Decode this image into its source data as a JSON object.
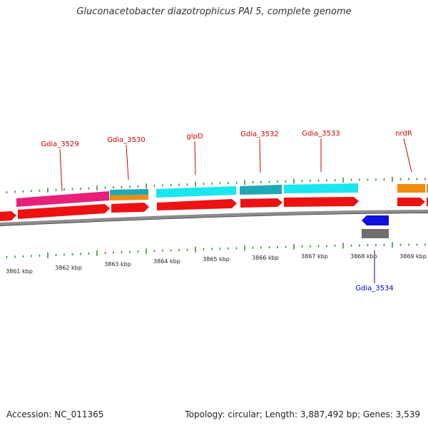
{
  "title": "Gluconacetobacter diazotrophicus PAI 5, complete genome",
  "footer": {
    "accession": "Accession: NC_011365",
    "topology": "Topology: circular; Length: 3,887,492 bp; Genes: 3,539"
  },
  "colors": {
    "background": "#ffffff",
    "label_forward": "#cc0000",
    "label_reverse": "#0000cc",
    "tick": "#2e8b2e",
    "backbone": "#8c8c8c",
    "gene_pink": "#e8207a",
    "gene_cyan": "#19e6ee",
    "gene_teal": "#1fa9b5",
    "gene_orange": "#f08c10",
    "gene_red": "#ee1111",
    "gene_blue": "#1010dd",
    "gene_gray": "#6e6e6e"
  },
  "gene_labels": [
    {
      "id": "Gdia_3529",
      "text": "Gdia_3529",
      "strand": "forward"
    },
    {
      "id": "Gdia_3530",
      "text": "Gdia_3530",
      "strand": "forward"
    },
    {
      "id": "glpD",
      "text": "glpD",
      "strand": "forward"
    },
    {
      "id": "Gdia_3532",
      "text": "Gdia_3532",
      "strand": "forward"
    },
    {
      "id": "Gdia_3533",
      "text": "Gdia_3533",
      "strand": "forward"
    },
    {
      "id": "nrdR",
      "text": "nrdR",
      "strand": "forward"
    },
    {
      "id": "Gdia_3534",
      "text": "Gdia_3534",
      "strand": "reverse"
    }
  ],
  "kbp_labels": [
    "3861 kbp",
    "3862 kbp",
    "3863 kbp",
    "3864 kbp",
    "3865 kbp",
    "3866 kbp",
    "3867 kbp",
    "3868 kbp",
    "3869 kbp"
  ]
}
